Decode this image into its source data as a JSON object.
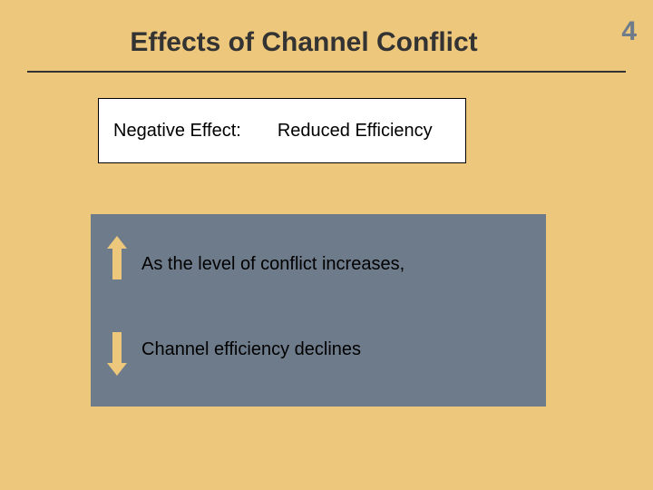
{
  "slide": {
    "background_color": "#edc77b",
    "page_number": "4",
    "page_number_color": "#6e7b8b",
    "title": "Effects of Channel Conflict",
    "title_color": "#333333",
    "underline_color": "#333333"
  },
  "top_box": {
    "background_color": "#ffffff",
    "left_text": "Negative Effect:",
    "right_text": "Reduced Efficiency",
    "text_color": "#000000"
  },
  "bottom_box": {
    "background_color": "#6e7b8b",
    "line1": "As the level of conflict increases,",
    "line2": "Channel efficiency declines"
  },
  "arrows": {
    "shaft_color": "#edc77b",
    "head_color": "#edc77b"
  }
}
